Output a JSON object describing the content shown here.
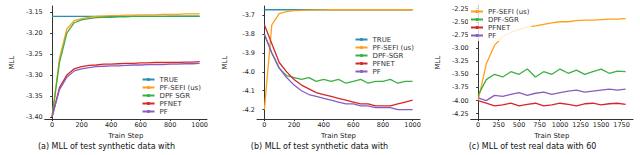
{
  "chart_data": [
    {
      "type": "line",
      "title": "(a) MLL of test synthetic data with",
      "xlabel": "Train Step",
      "ylabel": "MLL",
      "x": [
        0,
        50,
        100,
        150,
        200,
        250,
        300,
        350,
        400,
        450,
        500,
        550,
        600,
        650,
        700,
        750,
        800,
        850,
        900,
        950,
        1000
      ],
      "series": [
        {
          "name": "TRUE",
          "color": "#2a8fb0",
          "values": [
            -3.16,
            -3.16,
            -3.16,
            -3.16,
            -3.16,
            -3.16,
            -3.16,
            -3.16,
            -3.16,
            -3.16,
            -3.16,
            -3.16,
            -3.16,
            -3.16,
            -3.16,
            -3.16,
            -3.16,
            -3.16,
            -3.16,
            -3.16,
            -3.16
          ]
        },
        {
          "name": "PF-SEFI (us)",
          "color": "#ff9f1c",
          "values": [
            -3.4,
            -3.26,
            -3.19,
            -3.17,
            -3.165,
            -3.162,
            -3.16,
            -3.159,
            -3.158,
            -3.158,
            -3.157,
            -3.157,
            -3.156,
            -3.156,
            -3.156,
            -3.155,
            -3.155,
            -3.155,
            -3.154,
            -3.154,
            -3.154
          ]
        },
        {
          "name": "DPF SGR",
          "color": "#3cb043",
          "values": [
            -3.4,
            -3.27,
            -3.2,
            -3.175,
            -3.168,
            -3.165,
            -3.163,
            -3.162,
            -3.162,
            -3.161,
            -3.161,
            -3.16,
            -3.16,
            -3.16,
            -3.16,
            -3.16,
            -3.159,
            -3.159,
            -3.159,
            -3.159,
            -3.159
          ]
        },
        {
          "name": "PFNET",
          "color": "#d62728",
          "values": [
            -3.4,
            -3.33,
            -3.3,
            -3.285,
            -3.28,
            -3.277,
            -3.276,
            -3.274,
            -3.274,
            -3.273,
            -3.272,
            -3.272,
            -3.271,
            -3.271,
            -3.27,
            -3.27,
            -3.27,
            -3.27,
            -3.269,
            -3.269,
            -3.268
          ]
        },
        {
          "name": "PF",
          "color": "#8a5cc2",
          "values": [
            -3.4,
            -3.335,
            -3.305,
            -3.29,
            -3.285,
            -3.282,
            -3.28,
            -3.279,
            -3.278,
            -3.278,
            -3.277,
            -3.276,
            -3.276,
            -3.275,
            -3.275,
            -3.275,
            -3.274,
            -3.274,
            -3.273,
            -3.273,
            -3.272
          ]
        }
      ],
      "xlim": [
        -50,
        1050
      ],
      "xticks": [
        0,
        200,
        400,
        600,
        800,
        1000
      ],
      "ylim": [
        -3.405,
        -3.135
      ],
      "yticks": [
        {
          "value": -3.4,
          "label": "-3.40"
        },
        -3.35,
        {
          "value": -3.3,
          "label": "-3.30"
        },
        -3.25,
        {
          "value": -3.2,
          "label": "-3.20"
        },
        -3.15
      ],
      "legend": "lower right",
      "grid": false
    },
    {
      "type": "line",
      "title": "(b) MLL of test synthetic data with",
      "xlabel": "Train Step",
      "ylabel": "MLL",
      "x": [
        0,
        50,
        100,
        150,
        200,
        250,
        300,
        350,
        400,
        450,
        500,
        550,
        600,
        650,
        700,
        750,
        800,
        850,
        900,
        950,
        1000
      ],
      "series": [
        {
          "name": "TRUE",
          "color": "#2a8fb0",
          "values": [
            -3.67,
            -3.67,
            -3.67,
            -3.67,
            -3.67,
            -3.67,
            -3.67,
            -3.67,
            -3.67,
            -3.67,
            -3.67,
            -3.67,
            -3.67,
            -3.67,
            -3.67,
            -3.67,
            -3.67,
            -3.67,
            -3.67,
            -3.67,
            -3.67
          ]
        },
        {
          "name": "PF-SEFI (us)",
          "color": "#ff9f1c",
          "values": [
            -4.2,
            -3.75,
            -3.69,
            -3.68,
            -3.675,
            -3.673,
            -3.672,
            -3.671,
            -3.671,
            -3.67,
            -3.67,
            -3.67,
            -3.67,
            -3.67,
            -3.67,
            -3.67,
            -3.67,
            -3.67,
            -3.67,
            -3.67,
            -3.67
          ]
        },
        {
          "name": "DPF-SGR",
          "color": "#3cb043",
          "values": [
            -3.8,
            -3.9,
            -3.98,
            -4.02,
            -4.03,
            -4.04,
            -4.03,
            -4.05,
            -4.04,
            -4.05,
            -4.04,
            -4.06,
            -4.05,
            -4.04,
            -4.06,
            -4.05,
            -4.05,
            -4.04,
            -4.06,
            -4.05,
            -4.05
          ]
        },
        {
          "name": "PFNET",
          "color": "#d62728",
          "values": [
            -3.75,
            -3.85,
            -3.95,
            -4.0,
            -4.04,
            -4.07,
            -4.09,
            -4.11,
            -4.12,
            -4.13,
            -4.14,
            -4.15,
            -4.16,
            -4.17,
            -4.17,
            -4.18,
            -4.18,
            -4.18,
            -4.17,
            -4.16,
            -4.15
          ]
        },
        {
          "name": "PF",
          "color": "#8a5cc2",
          "values": [
            -3.8,
            -3.9,
            -3.98,
            -4.03,
            -4.07,
            -4.1,
            -4.12,
            -4.13,
            -4.14,
            -4.15,
            -4.16,
            -4.17,
            -4.17,
            -4.18,
            -4.18,
            -4.19,
            -4.19,
            -4.19,
            -4.2,
            -4.2,
            -4.2
          ]
        }
      ],
      "xlim": [
        -50,
        1050
      ],
      "xticks": [
        0,
        200,
        400,
        600,
        800,
        1000
      ],
      "ylim": [
        -4.25,
        -3.65
      ],
      "yticks": [
        -4.2,
        -4.1,
        {
          "value": -4.0,
          "label": "-4.0"
        },
        -3.9,
        -3.8,
        -3.7
      ],
      "legend": "center right",
      "grid": false
    },
    {
      "type": "line",
      "title": "(c) MLL of test real data with 60",
      "xlabel": "Train Step",
      "ylabel": "MLL",
      "x": [
        0,
        100,
        200,
        300,
        400,
        500,
        600,
        700,
        800,
        900,
        1000,
        1100,
        1200,
        1300,
        1400,
        1500,
        1600,
        1700,
        1800
      ],
      "series": [
        {
          "name": "PF-SEFI (us)",
          "color": "#ff9f1c",
          "values": [
            -4.0,
            -3.3,
            -2.95,
            -2.78,
            -2.7,
            -2.65,
            -2.6,
            -2.58,
            -2.55,
            -2.52,
            -2.5,
            -2.5,
            -2.48,
            -2.47,
            -2.47,
            -2.46,
            -2.45,
            -2.45,
            -2.44
          ]
        },
        {
          "name": "DPF-SGR",
          "color": "#3cb043",
          "values": [
            -3.9,
            -3.6,
            -3.5,
            -3.55,
            -3.45,
            -3.5,
            -3.4,
            -3.55,
            -3.45,
            -3.5,
            -3.4,
            -3.48,
            -3.42,
            -3.5,
            -3.45,
            -3.4,
            -3.48,
            -3.44,
            -3.45
          ]
        },
        {
          "name": "PFNET",
          "color": "#d62728",
          "values": [
            -4.0,
            -4.05,
            -4.1,
            -4.08,
            -4.05,
            -4.1,
            -4.07,
            -4.05,
            -4.1,
            -4.08,
            -4.05,
            -4.07,
            -4.1,
            -4.06,
            -4.05,
            -4.08,
            -4.06,
            -4.05,
            -4.07
          ]
        },
        {
          "name": "PF",
          "color": "#8a5cc2",
          "values": [
            -3.95,
            -4.0,
            -3.9,
            -3.92,
            -3.88,
            -3.85,
            -3.9,
            -3.86,
            -3.84,
            -3.88,
            -3.85,
            -3.82,
            -3.8,
            -3.84,
            -3.82,
            -3.8,
            -3.78,
            -3.8,
            -3.78
          ]
        }
      ],
      "xlim": [
        -90,
        1890
      ],
      "xticks": [
        0,
        250,
        500,
        750,
        1000,
        1250,
        1500,
        1750
      ],
      "ylim": [
        -4.35,
        -2.2
      ],
      "yticks": [
        -4.25,
        {
          "value": -4.0,
          "label": "-4.00"
        },
        -3.75,
        {
          "value": -3.5,
          "label": "-3.50"
        },
        -3.25,
        {
          "value": -3.0,
          "label": "-3.00"
        },
        -2.75,
        {
          "value": -2.5,
          "label": "-2.50"
        },
        -2.25
      ],
      "legend": "upper left",
      "grid": false
    }
  ]
}
